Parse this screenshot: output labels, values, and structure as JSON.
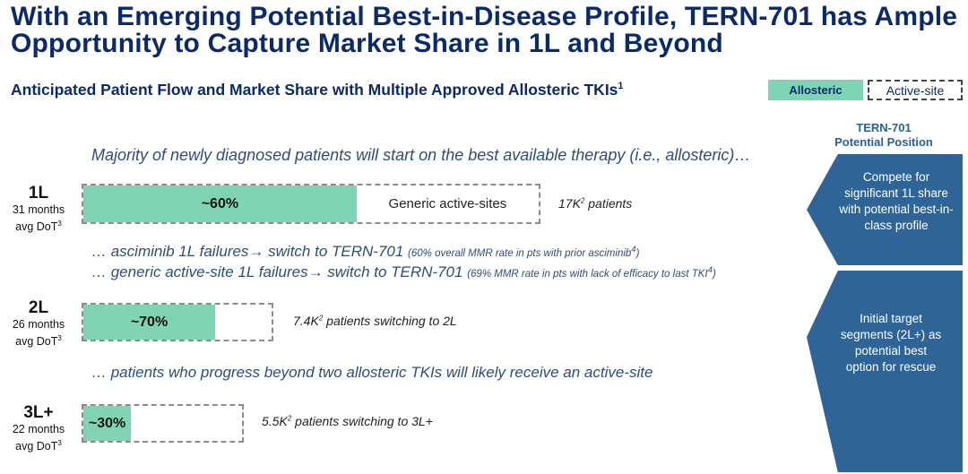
{
  "title": "With an Emerging Potential Best-in-Disease Profile, TERN-701 has Ample Opportunity to Capture Market Share in 1L and Beyond",
  "subtitle": "Anticipated Patient Flow and Market Share with Multiple Approved Allosteric TKIs",
  "subtitle_footnote": "1",
  "legend": {
    "allosteric": "Allosteric",
    "active_site": "Active-site",
    "allosteric_color": "#7fd4b4"
  },
  "notes": {
    "majority": "Majority of newly diagnosed patients will start on the best available therapy (i.e., allosteric)…",
    "asciminib_main": "… asciminib 1L failures→ switch to TERN-701",
    "asciminib_detail": "(60% overall MMR rate in pts with prior asciminib",
    "asciminib_fn": "4",
    "asciminib_close": ")",
    "generic_main": "… generic active-site 1L failures→ switch to TERN-701",
    "generic_detail": "(69% MMR rate in pts with lack of efficacy to last TKI",
    "generic_fn": "4",
    "generic_close": ")",
    "progress": "… patients who progress beyond two allosteric TKIs will likely receive an active-site"
  },
  "chart_data": {
    "type": "bar",
    "categories": [
      "1L",
      "2L",
      "3L+"
    ],
    "series": [
      {
        "name": "Allosteric",
        "values": [
          60,
          70,
          30
        ],
        "labels": [
          "~60%",
          "~70%",
          "~30%"
        ]
      }
    ],
    "lines": [
      {
        "label": "1L",
        "dot_line1": "31 months",
        "dot_line2": "avg DoT",
        "dot_fn": "3",
        "remainder_label": "Generic active-sites",
        "patients_value": "17K",
        "patients_fn": "2",
        "patients_text": " patients"
      },
      {
        "label": "2L",
        "dot_line1": "26 months",
        "dot_line2": "avg DoT",
        "dot_fn": "3",
        "remainder_label": "",
        "patients_value": "7.4K",
        "patients_fn": "2",
        "patients_text": " patients switching to 2L"
      },
      {
        "label": "3L+",
        "dot_line1": "22 months",
        "dot_line2": "avg DoT",
        "dot_fn": "3",
        "remainder_label": "",
        "patients_value": "5.5K",
        "patients_fn": "2",
        "patients_text": " patients switching to 3L+"
      }
    ]
  },
  "position": {
    "header_line1": "TERN-701",
    "header_line2": "Potential Position",
    "box1": "Compete for significant 1L share with potential best-in-class profile",
    "box2": "Initial target segments (2L+) as potential best option for rescue"
  }
}
